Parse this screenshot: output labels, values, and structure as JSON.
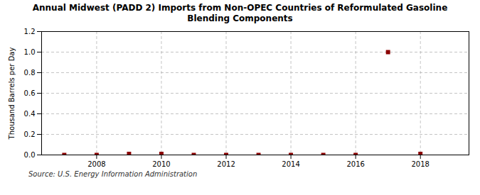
{
  "chart_data": {
    "type": "scatter",
    "title": "Annual Midwest (PADD 2) Imports from Non-OPEC Countries of Reformulated Gasoline\nBlending Components",
    "ylabel": "Thousand Barrels per Day",
    "source": "Source: U.S. Energy Information Administration",
    "x": [
      2007,
      2008,
      2009,
      2010,
      2011,
      2012,
      2013,
      2014,
      2015,
      2016,
      2017,
      2018
    ],
    "values": [
      0.0,
      0.0,
      0.01,
      0.01,
      0.0,
      0.0,
      0.0,
      0.0,
      0.0,
      0.0,
      1.0,
      0.01
    ],
    "color": "#8b0000",
    "marker": "square",
    "xlim": [
      2006.3,
      2019.5
    ],
    "ylim": [
      0.0,
      1.2
    ],
    "xticks": [
      2008,
      2010,
      2012,
      2014,
      2016,
      2018
    ],
    "yticks": [
      {
        "value": 0,
        "label": "0.0"
      },
      0.2,
      0.4,
      0.6,
      0.8,
      {
        "value": 1,
        "label": "1.0"
      },
      1.2
    ],
    "grid": true
  }
}
